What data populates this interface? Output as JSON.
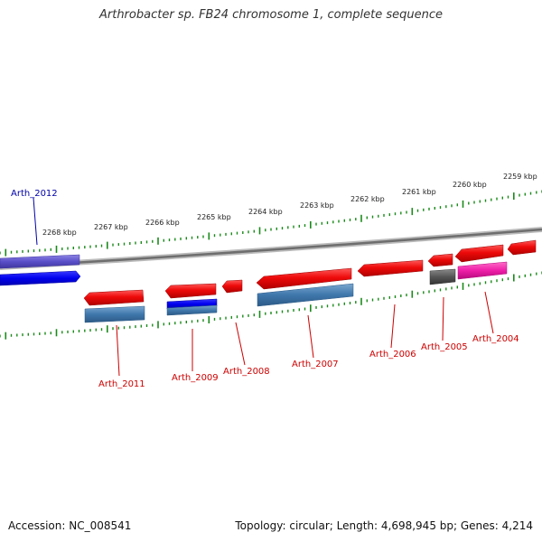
{
  "title": "Arthrobacter sp. FB24 chromosome 1, complete sequence",
  "footer": {
    "accession": "Accession: NC_008541",
    "summary": "Topology: circular; Length: 4,698,945 bp; Genes: 4,214"
  },
  "ruler": {
    "ticks": [
      "2268 kbp",
      "2267 kbp",
      "2266 kbp",
      "2265 kbp",
      "2264 kbp",
      "2263 kbp",
      "2262 kbp",
      "2261 kbp",
      "2260 kbp",
      "2259 kbp"
    ]
  },
  "genes": [
    {
      "id": "Arth_2012",
      "strand": "plus",
      "color": "#5a4fc8",
      "highlight": true
    },
    {
      "id": "Arth_2011",
      "strand": "minus",
      "color": "#e3090d"
    },
    {
      "id": "Arth_2009",
      "strand": "minus",
      "color": "#e3090d"
    },
    {
      "id": "Arth_2008",
      "strand": "minus",
      "color": "#e3090d"
    },
    {
      "id": "Arth_2007",
      "strand": "minus",
      "color": "#e3090d"
    },
    {
      "id": "Arth_2006",
      "strand": "minus",
      "color": "#e3090d"
    },
    {
      "id": "Arth_2005",
      "strand": "minus",
      "color": "#e3090d"
    },
    {
      "id": "Arth_2004",
      "strand": "minus",
      "color": "#e3090d"
    }
  ],
  "colors": {
    "forward_blue": "#0000ee",
    "steel_blue": "#3f77ac",
    "magenta": "#ee1ea8",
    "gray": "#555555",
    "tick_green": "#1a8a1a",
    "label_red": "#cc0000",
    "label_blue": "#0000aa",
    "backbone": "#888888"
  }
}
